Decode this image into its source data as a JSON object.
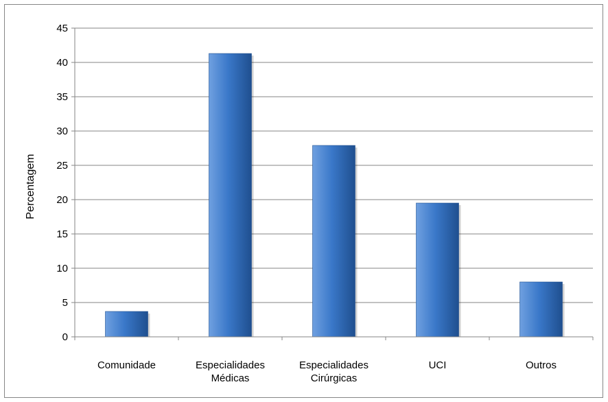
{
  "chart_data": {
    "type": "bar",
    "categories": [
      [
        "Comunidade"
      ],
      [
        "Especialidades",
        "Médicas"
      ],
      [
        "Especialidades",
        "Cirúrgicas"
      ],
      [
        "UCI"
      ],
      [
        "Outros"
      ]
    ],
    "values": [
      3.7,
      41.3,
      27.9,
      19.5,
      8.0
    ],
    "title": "",
    "xlabel": "",
    "ylabel": "Percentagem",
    "ylim": [
      0,
      45
    ],
    "yticks": [
      0,
      5,
      10,
      15,
      20,
      25,
      30,
      35,
      40,
      45
    ],
    "grid": true,
    "legend": "none",
    "colors": {
      "bar_light": "#6fa0e0",
      "bar_main": "#3a78c9",
      "bar_dark": "#1f4f8f",
      "gridline": "#868686"
    }
  }
}
